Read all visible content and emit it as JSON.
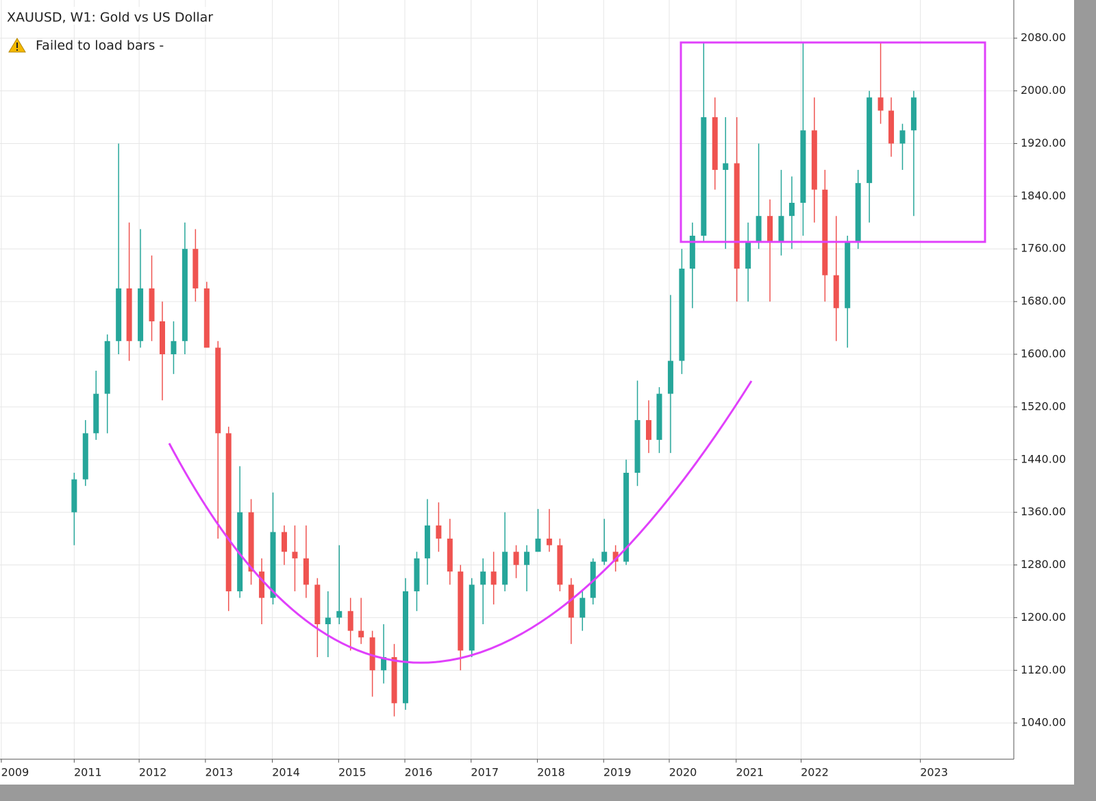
{
  "chart_data": {
    "type": "candlestick",
    "title": "XAUUSD, W1: Gold vs US Dollar",
    "subtitle": "Failed to load bars -",
    "up_color": "#26a69a",
    "down_color": "#ef5350",
    "grid": true,
    "xlim": [
      2009.88,
      2025.18
    ],
    "ylim": [
      985,
      2138
    ],
    "xticks": [
      {
        "value": 2009.9,
        "label": "2009"
      },
      {
        "value": 2011.0,
        "label": "2011"
      },
      {
        "value": 2011.98,
        "label": "2012"
      },
      {
        "value": 2012.98,
        "label": "2013"
      },
      {
        "value": 2013.99,
        "label": "2014"
      },
      {
        "value": 2014.99,
        "label": "2015"
      },
      {
        "value": 2015.99,
        "label": "2016"
      },
      {
        "value": 2016.99,
        "label": "2017"
      },
      {
        "value": 2017.99,
        "label": "2018"
      },
      {
        "value": 2018.99,
        "label": "2019"
      },
      {
        "value": 2019.98,
        "label": "2020"
      },
      {
        "value": 2020.99,
        "label": "2021"
      },
      {
        "value": 2021.97,
        "label": "2022"
      },
      {
        "value": 2023.77,
        "label": "2023"
      }
    ],
    "yticks": [
      {
        "value": 1040,
        "label": "1040.00"
      },
      {
        "value": 1120,
        "label": "1120.00"
      },
      {
        "value": 1200,
        "label": "1200.00"
      },
      {
        "value": 1280,
        "label": "1280.00"
      },
      {
        "value": 1360,
        "label": "1360.00"
      },
      {
        "value": 1440,
        "label": "1440.00"
      },
      {
        "value": 1520,
        "label": "1520.00"
      },
      {
        "value": 1600,
        "label": "1600.00"
      },
      {
        "value": 1680,
        "label": "1680.00"
      },
      {
        "value": 1760,
        "label": "1760.00"
      },
      {
        "value": 1840,
        "label": "1840.00"
      },
      {
        "value": 1920,
        "label": "1920.00"
      },
      {
        "value": 2000,
        "label": "2000.00"
      },
      {
        "value": 2080,
        "label": "2080.00"
      }
    ],
    "x": [
      2011.0,
      2011.17,
      2011.33,
      2011.5,
      2011.67,
      2011.83,
      2012.0,
      2012.17,
      2012.33,
      2012.5,
      2012.67,
      2012.83,
      2013.0,
      2013.17,
      2013.33,
      2013.5,
      2013.67,
      2013.83,
      2014.0,
      2014.17,
      2014.33,
      2014.5,
      2014.67,
      2014.83,
      2015.0,
      2015.17,
      2015.33,
      2015.5,
      2015.67,
      2015.83,
      2016.0,
      2016.17,
      2016.33,
      2016.5,
      2016.67,
      2016.83,
      2017.0,
      2017.17,
      2017.33,
      2017.5,
      2017.67,
      2017.83,
      2018.0,
      2018.17,
      2018.33,
      2018.5,
      2018.67,
      2018.83,
      2019.0,
      2019.17,
      2019.33,
      2019.5,
      2019.67,
      2019.83,
      2020.0,
      2020.17,
      2020.33,
      2020.5,
      2020.67,
      2020.83,
      2021.0,
      2021.17,
      2021.33,
      2021.5,
      2021.67,
      2021.83,
      2022.0,
      2022.17,
      2022.33,
      2022.5,
      2022.67,
      2022.83,
      2023.0,
      2023.17,
      2023.33,
      2023.5,
      2023.67
    ],
    "open": [
      1360,
      1410,
      1480,
      1540,
      1620,
      1700,
      1620,
      1700,
      1650,
      1600,
      1620,
      1760,
      1700,
      1610,
      1480,
      1240,
      1360,
      1270,
      1230,
      1330,
      1300,
      1290,
      1250,
      1190,
      1200,
      1210,
      1180,
      1170,
      1120,
      1140,
      1070,
      1240,
      1290,
      1340,
      1320,
      1270,
      1150,
      1250,
      1270,
      1250,
      1300,
      1280,
      1300,
      1320,
      1310,
      1250,
      1200,
      1230,
      1285,
      1300,
      1285,
      1420,
      1500,
      1470,
      1540,
      1590,
      1730,
      1780,
      1960,
      1880,
      1890,
      1730,
      1770,
      1810,
      1770,
      1810,
      1830,
      1940,
      1850,
      1720,
      1670,
      1770,
      1860,
      1990,
      1970,
      1920,
      1940
    ],
    "high": [
      1420,
      1500,
      1575,
      1630,
      1920,
      1800,
      1790,
      1750,
      1680,
      1650,
      1800,
      1790,
      1710,
      1620,
      1490,
      1430,
      1380,
      1290,
      1390,
      1340,
      1340,
      1340,
      1260,
      1240,
      1310,
      1230,
      1230,
      1180,
      1190,
      1160,
      1260,
      1300,
      1380,
      1375,
      1350,
      1280,
      1260,
      1290,
      1300,
      1360,
      1310,
      1310,
      1365,
      1365,
      1320,
      1260,
      1240,
      1290,
      1350,
      1310,
      1440,
      1560,
      1530,
      1550,
      1690,
      1760,
      1800,
      2075,
      1990,
      1960,
      1960,
      1800,
      1920,
      1835,
      1880,
      1870,
      2075,
      1990,
      1880,
      1810,
      1780,
      1880,
      2000,
      2075,
      1990,
      1950,
      2000
    ],
    "low": [
      1310,
      1400,
      1470,
      1480,
      1600,
      1590,
      1610,
      1620,
      1530,
      1570,
      1600,
      1680,
      1610,
      1320,
      1210,
      1230,
      1250,
      1190,
      1220,
      1280,
      1240,
      1230,
      1140,
      1140,
      1190,
      1150,
      1160,
      1080,
      1100,
      1050,
      1060,
      1210,
      1250,
      1300,
      1250,
      1120,
      1140,
      1190,
      1220,
      1240,
      1260,
      1240,
      1300,
      1300,
      1240,
      1160,
      1180,
      1220,
      1280,
      1270,
      1280,
      1400,
      1450,
      1450,
      1450,
      1570,
      1670,
      1770,
      1850,
      1760,
      1680,
      1680,
      1760,
      1680,
      1750,
      1760,
      1780,
      1800,
      1680,
      1620,
      1610,
      1760,
      1800,
      1950,
      1900,
      1880,
      1810
    ],
    "close": [
      1410,
      1480,
      1540,
      1620,
      1700,
      1620,
      1700,
      1650,
      1600,
      1620,
      1760,
      1700,
      1610,
      1480,
      1240,
      1360,
      1270,
      1230,
      1330,
      1300,
      1290,
      1250,
      1190,
      1200,
      1210,
      1180,
      1170,
      1120,
      1140,
      1070,
      1240,
      1290,
      1340,
      1320,
      1270,
      1150,
      1250,
      1270,
      1250,
      1300,
      1280,
      1300,
      1320,
      1310,
      1250,
      1200,
      1230,
      1285,
      1300,
      1285,
      1420,
      1500,
      1470,
      1540,
      1590,
      1730,
      1780,
      1960,
      1880,
      1890,
      1730,
      1770,
      1810,
      1770,
      1810,
      1830,
      1940,
      1850,
      1720,
      1670,
      1770,
      1860,
      1990,
      1970,
      1920,
      1940,
      1990
    ]
  }
}
